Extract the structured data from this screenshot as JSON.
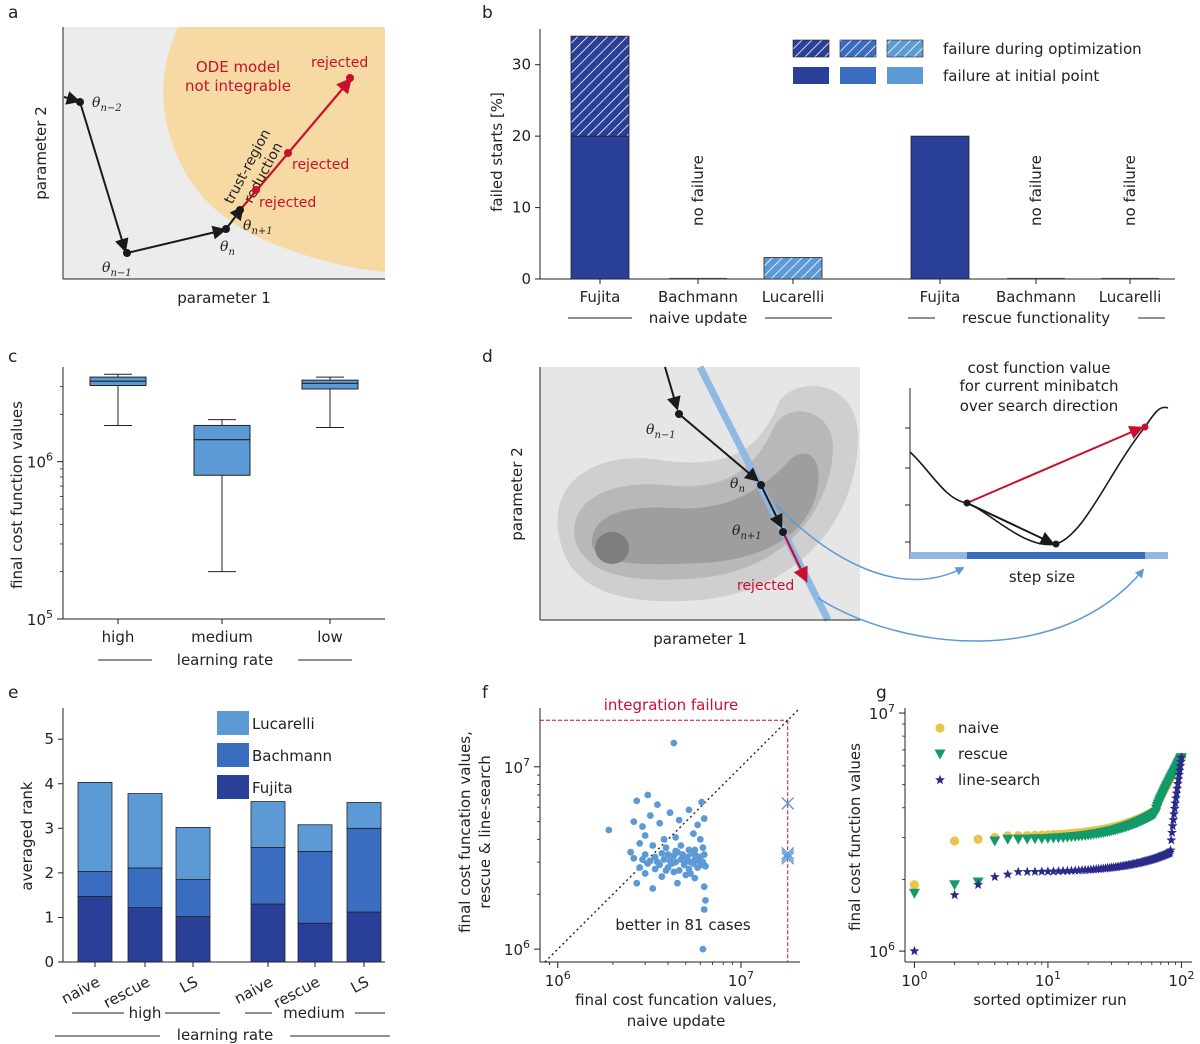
{
  "chart_data": [
    {
      "panel": "a",
      "type": "diagram",
      "xlabel": "parameter 1",
      "ylabel": "parameter 2",
      "region_label_line1": "ODE model",
      "region_label_line2": "not integrable",
      "trust_label_line1": "trust-region",
      "trust_label_line2": "reduction",
      "rejected_label": "rejected",
      "theta_labels": {
        "nm2": "θ",
        "nm2_sub": "n−2",
        "nm1": "θ",
        "nm1_sub": "n−1",
        "n": "θ",
        "n_sub": "n",
        "np1": "θ",
        "np1_sub": "n+1"
      }
    },
    {
      "panel": "b",
      "type": "bar",
      "ylabel": "failed starts [%]",
      "ylim": [
        0,
        35
      ],
      "yticks": [
        0,
        10,
        20,
        30
      ],
      "categories": [
        "Fujita",
        "Bachmann",
        "Lucarelli",
        "Fujita",
        "Bachmann",
        "Lucarelli"
      ],
      "groups": [
        "naive update",
        "rescue functionality"
      ],
      "series": [
        {
          "name": "failure at initial point",
          "values": [
            20,
            0,
            0,
            20,
            0,
            0
          ]
        },
        {
          "name": "failure during optimization",
          "values": [
            14,
            0,
            3,
            0,
            0,
            0
          ]
        }
      ],
      "no_failure_label": "no failure",
      "colors": [
        "#2a3f98",
        "#3a6cbf",
        "#5c9ad6"
      ]
    },
    {
      "panel": "c",
      "type": "box",
      "ylabel": "final cost function values",
      "yscale": "log",
      "ylim": [
        100000,
        4000000
      ],
      "ytick_base": "10",
      "ytick_exps": [
        "5",
        "6"
      ],
      "categories": [
        "high",
        "medium",
        "low"
      ],
      "xgroup_label": "learning rate",
      "boxes": [
        {
          "name": "high",
          "whislo": 1700000,
          "q1": 3050000,
          "med": 3250000,
          "q3": 3450000,
          "whishi": 3600000
        },
        {
          "name": "medium",
          "whislo": 200000,
          "q1": 820000,
          "med": 1380000,
          "q3": 1700000,
          "whishi": 1850000
        },
        {
          "name": "low",
          "whislo": 1650000,
          "q1": 2900000,
          "med": 3150000,
          "q3": 3300000,
          "whishi": 3450000
        }
      ],
      "color": "#5c9ad6"
    },
    {
      "panel": "d",
      "type": "diagram",
      "xlabel": "parameter 1",
      "ylabel": "parameter 2",
      "inset_title_line1": "cost function value",
      "inset_title_line2": "for current minibatch",
      "inset_title_line3": "over search direction",
      "inset_xlabel": "step size",
      "rejected_label": "rejected",
      "theta_labels": {
        "nm1": "θ",
        "nm1_sub": "n−1",
        "n": "θ",
        "n_sub": "n",
        "np1": "θ",
        "np1_sub": "n+1"
      }
    },
    {
      "panel": "e",
      "type": "bar",
      "stacked": true,
      "ylabel": "averaged rank",
      "ylim": [
        0,
        5.7
      ],
      "yticks": [
        0,
        1,
        2,
        3,
        4,
        5
      ],
      "categories": [
        "naive",
        "rescue",
        "LS",
        "naive",
        "rescue",
        "LS"
      ],
      "groups": [
        "high",
        "medium"
      ],
      "xgroup_label": "learning rate",
      "series": [
        {
          "name": "Fujita",
          "values": [
            1.47,
            1.22,
            1.02,
            1.3,
            0.87,
            1.12
          ]
        },
        {
          "name": "Bachmann",
          "values": [
            0.56,
            0.89,
            0.83,
            1.27,
            1.61,
            1.88
          ]
        },
        {
          "name": "Lucarelli",
          "values": [
            2.0,
            1.67,
            1.17,
            1.03,
            0.6,
            0.58
          ]
        }
      ],
      "colors": [
        "#2a3f98",
        "#3a6cbf",
        "#5c9ad6"
      ]
    },
    {
      "panel": "f",
      "type": "scatter",
      "xlabel_line1": "final cost funcation values,",
      "xlabel_line2": "naive update",
      "ylabel_line1": "final cost funcation values,",
      "ylabel_line2": "rescue & line-search",
      "xscale": "log",
      "yscale": "log",
      "xlim": [
        800000,
        21000000
      ],
      "ylim": [
        850000,
        21000000
      ],
      "tick_base": "10",
      "tick_exps": [
        "6",
        "7"
      ],
      "failure_label": "integration failure",
      "annotation": "better in 81 cases",
      "failure_x": 18000000,
      "points": [
        [
          1900000,
          4500000
        ],
        [
          4300000,
          13500000
        ],
        [
          2700000,
          6500000
        ],
        [
          3100000,
          7000000
        ],
        [
          3500000,
          6200000
        ],
        [
          3200000,
          5400000
        ],
        [
          2600000,
          5000000
        ],
        [
          2900000,
          4700000
        ],
        [
          3600000,
          4900000
        ],
        [
          4100000,
          5600000
        ],
        [
          4600000,
          5100000
        ],
        [
          5200000,
          5800000
        ],
        [
          6100000,
          6400000
        ],
        [
          6300000,
          5200000
        ],
        [
          5800000,
          4800000
        ],
        [
          5500000,
          4300000
        ],
        [
          3000000,
          4200000
        ],
        [
          3800000,
          4000000
        ],
        [
          4400000,
          4100000
        ],
        [
          6000000,
          4000000
        ],
        [
          2800000,
          3800000
        ],
        [
          3300000,
          3700000
        ],
        [
          3900000,
          3600000
        ],
        [
          4700000,
          3700000
        ],
        [
          5600000,
          3500000
        ],
        [
          6200000,
          3600000
        ],
        [
          2500000,
          3400000
        ],
        [
          3000000,
          3300000
        ],
        [
          3400000,
          3200000
        ],
        [
          3700000,
          3350000
        ],
        [
          4000000,
          3300000
        ],
        [
          4300000,
          3250000
        ],
        [
          4500000,
          3400000
        ],
        [
          4800000,
          3300000
        ],
        [
          5100000,
          3200000
        ],
        [
          5400000,
          3350000
        ],
        [
          5700000,
          3250000
        ],
        [
          6000000,
          3200000
        ],
        [
          6300000,
          3300000
        ],
        [
          2600000,
          3150000
        ],
        [
          2900000,
          3100000
        ],
        [
          3200000,
          3050000
        ],
        [
          3500000,
          3000000
        ],
        [
          3800000,
          3100000
        ],
        [
          4100000,
          3050000
        ],
        [
          4400000,
          3000000
        ],
        [
          4700000,
          3100000
        ],
        [
          5000000,
          3050000
        ],
        [
          5300000,
          3000000
        ],
        [
          5600000,
          3100000
        ],
        [
          5900000,
          3050000
        ],
        [
          6200000,
          3000000
        ],
        [
          3100000,
          2950000
        ],
        [
          3600000,
          2900000
        ],
        [
          4200000,
          2950000
        ],
        [
          4900000,
          2900000
        ],
        [
          5500000,
          2950000
        ],
        [
          6100000,
          2900000
        ],
        [
          2800000,
          2800000
        ],
        [
          3400000,
          2750000
        ],
        [
          4000000,
          2800000
        ],
        [
          4600000,
          2700000
        ],
        [
          5200000,
          2750000
        ],
        [
          5800000,
          2800000
        ],
        [
          6400000,
          2850000
        ],
        [
          3000000,
          2600000
        ],
        [
          3700000,
          2500000
        ],
        [
          4300000,
          2650000
        ],
        [
          5000000,
          2550000
        ],
        [
          5600000,
          2450000
        ],
        [
          2700000,
          2300000
        ],
        [
          3300000,
          2150000
        ],
        [
          4500000,
          2300000
        ],
        [
          6300000,
          2200000
        ],
        [
          5300000,
          2600000
        ],
        [
          3900000,
          2700000
        ],
        [
          4400000,
          3450000
        ],
        [
          5200000,
          3500000
        ],
        [
          6400000,
          1850000
        ],
        [
          6300000,
          1650000
        ],
        [
          6200000,
          1000000
        ]
      ],
      "failure_points": [
        [
          18000000,
          6300000
        ],
        [
          18000000,
          3350000
        ],
        [
          18000000,
          3250000
        ],
        [
          18000000,
          3150000
        ]
      ],
      "color": "#5c9ad6"
    },
    {
      "panel": "g",
      "type": "scatter",
      "xlabel": "sorted optimizer run",
      "ylabel": "final cost function values",
      "xscale": "log",
      "yscale": "log",
      "xlim": [
        0.85,
        120
      ],
      "ylim": [
        900000,
        10500000
      ],
      "tick_base": "10",
      "xtick_exps": [
        "0",
        "1",
        "2"
      ],
      "ytick_exps": [
        "6",
        "7"
      ],
      "series": [
        {
          "name": "naive",
          "color": "#e8c54a",
          "marker": "circle",
          "start": [
            1900000,
            2900000,
            2950000,
            3000000,
            3050000
          ],
          "mid_from": 3050000,
          "mid_to": 3900000,
          "end": 6500000,
          "knee": 0.62,
          "front_bias": 0.3
        },
        {
          "name": "rescue",
          "color": "#139a6b",
          "marker": "triangle",
          "start": [
            1750000,
            1900000,
            1950000,
            2900000,
            2950000
          ],
          "mid_from": 2950000,
          "mid_to": 3800000,
          "end": 6500000,
          "knee": 0.62,
          "front_bias": 0.3
        },
        {
          "name": "line-search",
          "color": "#2a2a8a",
          "marker": "star",
          "start": [
            1000000,
            1720000,
            1900000,
            2050000,
            2100000
          ],
          "mid_from": 2150000,
          "mid_to": 2600000,
          "end": 6500000,
          "knee": 0.82,
          "front_bias": 0.3
        }
      ]
    }
  ],
  "panel_letters": {
    "a": "a",
    "b": "b",
    "c": "c",
    "d": "d",
    "e": "e",
    "f": "f",
    "g": "g"
  }
}
